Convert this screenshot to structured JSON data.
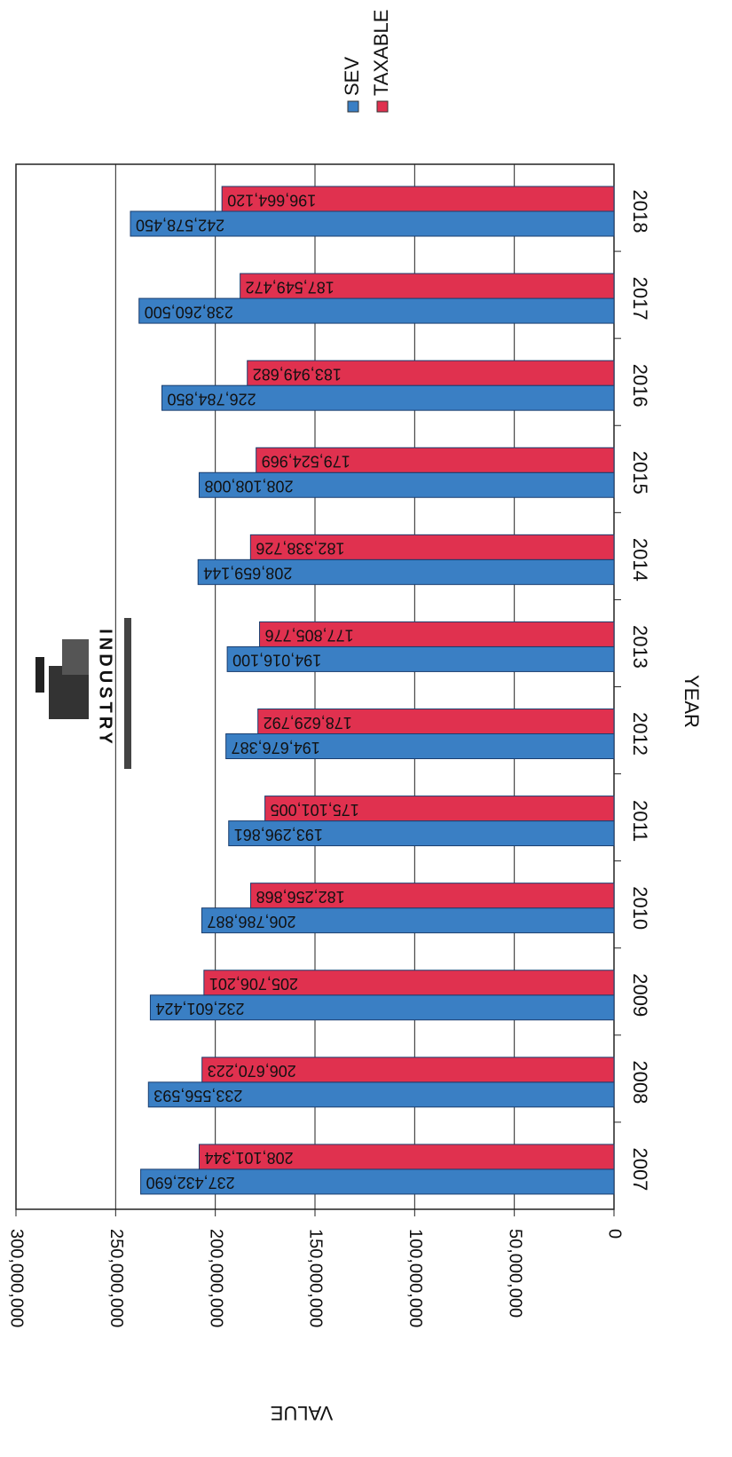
{
  "chart_data": {
    "type": "bar",
    "orientation": "horizontal",
    "x_label": "VALUE",
    "y_label": "YEAR",
    "logo_text": "INDUSTRY",
    "categories": [
      "2007",
      "2008",
      "2009",
      "2010",
      "2011",
      "2012",
      "2013",
      "2014",
      "2015",
      "2016",
      "2017",
      "2018"
    ],
    "series": [
      {
        "name": "SEV",
        "color": "#3a7fc4",
        "values": [
          237432690,
          233556593,
          232601424,
          206786887,
          193296861,
          194676387,
          194016100,
          208659144,
          208108008,
          226784850,
          238260500,
          242578450
        ],
        "value_labels": [
          "237,432,690",
          "233,556,593",
          "232,601,424",
          "206,786,887",
          "193,296,861",
          "194,676,387",
          "194,016,100",
          "208,659,144",
          "208,108,008",
          "226,784,850",
          "238,260,500",
          "242,578,450"
        ]
      },
      {
        "name": "TAXABLE",
        "color": "#e0314f",
        "values": [
          208101344,
          206670223,
          205706201,
          182256868,
          175101005,
          178629792,
          177805776,
          182338726,
          179524969,
          183949682,
          187549472,
          196664120
        ],
        "value_labels": [
          "208,101,344",
          "206,670,223",
          "205,706,201",
          "182,256,868",
          "175,101,005",
          "178,629,792",
          "177,805,776",
          "182,338,726",
          "179,524,969",
          "183,949,682",
          "187,549,472",
          "196,664,120"
        ]
      }
    ],
    "xlim": [
      0,
      300000000
    ],
    "xticks": [
      0,
      {
        "value": 50000000,
        "label": "50,000,000"
      },
      {
        "value": 100000000,
        "label": "100,000,000"
      },
      {
        "value": 150000000,
        "label": "150,000,000"
      },
      {
        "value": 200000000,
        "label": "200,000,000"
      },
      {
        "value": 250000000,
        "label": "250,000,000"
      },
      {
        "value": 300000000,
        "label": "300,000,000"
      }
    ],
    "grid": true
  }
}
